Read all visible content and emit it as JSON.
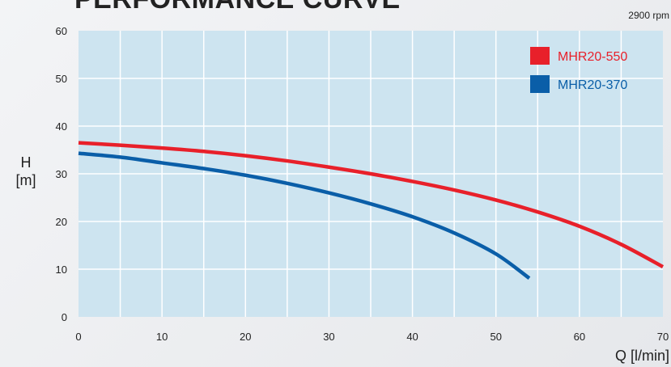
{
  "title": "PERFORMANCE CURVE",
  "speed_note": "2900 rpm",
  "colors": {
    "plot_bg": "#cde4f0",
    "grid": "#ffffff",
    "red": "#e8202a",
    "blue": "#0a5ea8"
  },
  "chart_data": {
    "type": "line",
    "title": "PERFORMANCE CURVE",
    "xlabel": "Q [l/min]",
    "ylabel_line1": "H",
    "ylabel_line2": "[m]",
    "xlim": [
      0,
      70
    ],
    "ylim": [
      0,
      60
    ],
    "xticks": [
      "0",
      "10",
      "20",
      "30",
      "40",
      "50",
      "60",
      "70"
    ],
    "yticks": [
      "0",
      "10",
      "20",
      "30",
      "40",
      "50",
      "60"
    ],
    "grid": true,
    "legend_position": "top-right",
    "series": [
      {
        "name": "MHR20-550",
        "color": "#e8202a",
        "x": [
          0,
          5,
          10,
          15,
          20,
          25,
          30,
          35,
          40,
          45,
          50,
          55,
          60,
          65,
          70
        ],
        "y": [
          36.5,
          36.0,
          35.4,
          34.7,
          33.8,
          32.7,
          31.4,
          30.0,
          28.4,
          26.6,
          24.5,
          22.0,
          19.0,
          15.2,
          10.5
        ]
      },
      {
        "name": "MHR20-370",
        "color": "#0a5ea8",
        "x": [
          0,
          5,
          10,
          15,
          20,
          25,
          30,
          35,
          40,
          45,
          50,
          54
        ],
        "y": [
          34.3,
          33.5,
          32.3,
          31.1,
          29.7,
          28.0,
          26.0,
          23.7,
          21.0,
          17.6,
          13.2,
          8.1
        ]
      }
    ]
  }
}
